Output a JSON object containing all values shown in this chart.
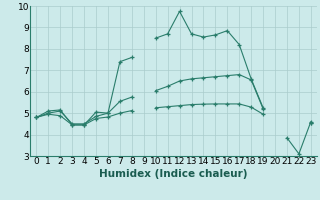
{
  "title": "",
  "xlabel": "Humidex (Indice chaleur)",
  "x": [
    0,
    1,
    2,
    3,
    4,
    5,
    6,
    7,
    8,
    9,
    10,
    11,
    12,
    13,
    14,
    15,
    16,
    17,
    18,
    19,
    20,
    21,
    22,
    23
  ],
  "line_max": [
    4.8,
    5.1,
    5.15,
    4.45,
    4.45,
    5.05,
    5.0,
    7.4,
    7.6,
    null,
    8.5,
    8.7,
    9.75,
    8.7,
    8.55,
    8.65,
    8.85,
    8.2,
    6.6,
    5.25,
    null,
    3.85,
    3.1,
    4.6
  ],
  "line_mid": [
    4.8,
    5.0,
    5.1,
    4.5,
    4.5,
    4.85,
    5.0,
    5.55,
    5.75,
    null,
    6.05,
    6.25,
    6.5,
    6.6,
    6.65,
    6.7,
    6.75,
    6.8,
    6.55,
    5.2,
    null,
    null,
    null,
    4.55
  ],
  "line_min": [
    4.8,
    4.95,
    4.88,
    4.45,
    4.45,
    4.75,
    4.82,
    5.0,
    5.12,
    null,
    5.25,
    5.3,
    5.35,
    5.4,
    5.42,
    5.43,
    5.43,
    5.43,
    5.28,
    4.95,
    null,
    null,
    null,
    4.52
  ],
  "bg_color": "#cceaea",
  "line_color": "#2a7d6b",
  "grid_color": "#aacccc",
  "ylim": [
    3,
    10
  ],
  "yticks": [
    3,
    4,
    5,
    6,
    7,
    8,
    9,
    10
  ],
  "xticks": [
    0,
    1,
    2,
    3,
    4,
    5,
    6,
    7,
    8,
    9,
    10,
    11,
    12,
    13,
    14,
    15,
    16,
    17,
    18,
    19,
    20,
    21,
    22,
    23
  ],
  "xlabel_fontsize": 7.5,
  "tick_fontsize": 6.5
}
